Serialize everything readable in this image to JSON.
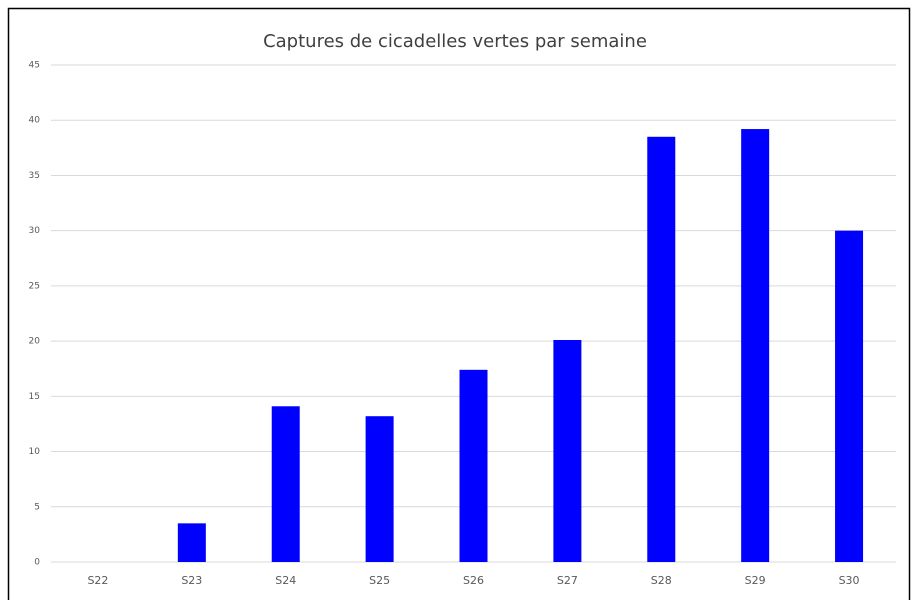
{
  "chart_data": {
    "type": "bar",
    "title": "Captures de cicadelles vertes par semaine",
    "categories": [
      "S22",
      "S23",
      "S24",
      "S25",
      "S26",
      "S27",
      "S28",
      "S29",
      "S30"
    ],
    "values": [
      0,
      3.5,
      14.1,
      13.2,
      17.4,
      20.1,
      38.5,
      39.2,
      30
    ],
    "color": "#0000ff",
    "ylim": [
      0,
      45
    ],
    "yticks": [
      0,
      5,
      10,
      15,
      20,
      25,
      30,
      35,
      40,
      45
    ],
    "grid": true
  }
}
